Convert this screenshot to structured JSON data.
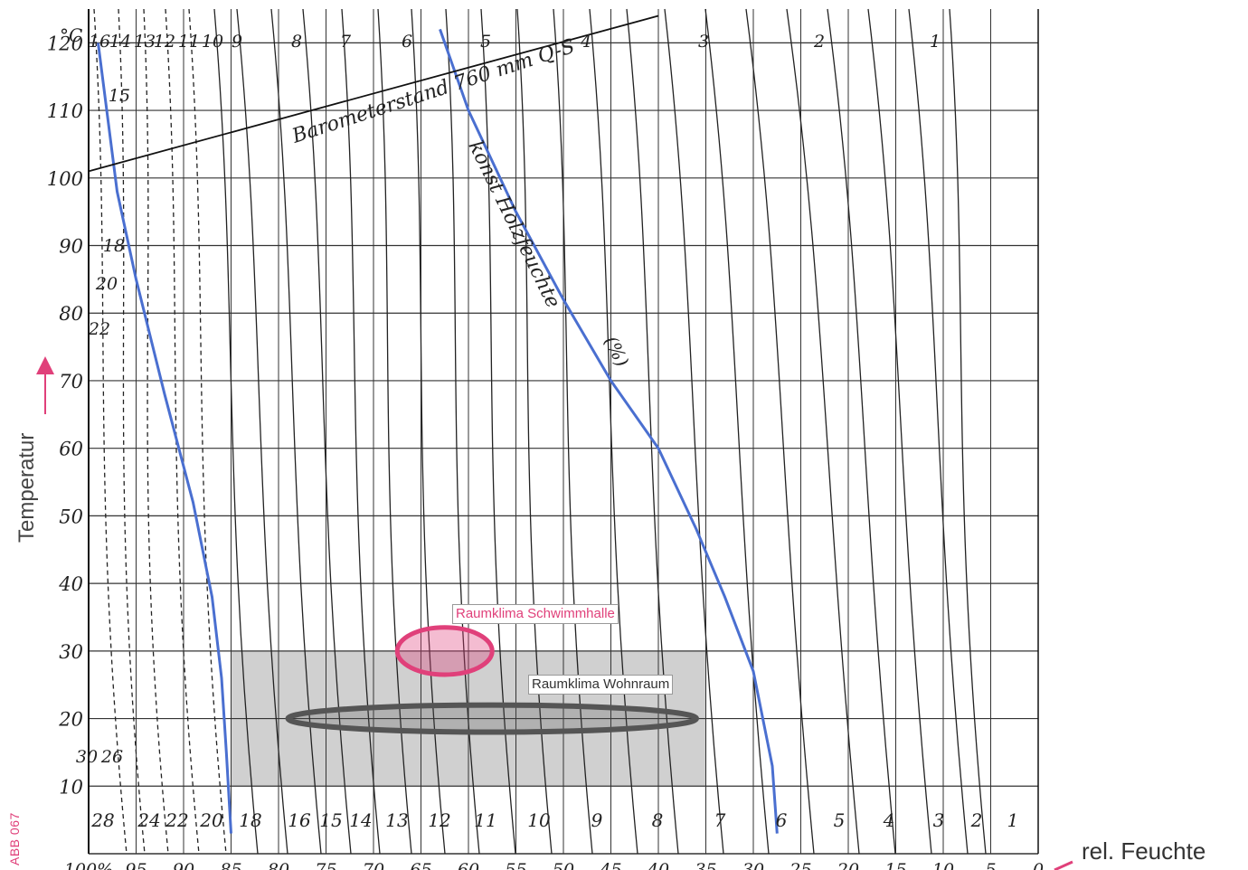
{
  "chart_data": {
    "type": "line",
    "ylabel": "Temperatur",
    "xlabel": "rel. Feuchte",
    "xlim": [
      100,
      0
    ],
    "ylim": [
      0,
      125
    ],
    "grid": true,
    "y_unit": "°C",
    "x_unit": "%",
    "y_ticks": [
      10,
      20,
      30,
      40,
      50,
      60,
      70,
      80,
      90,
      100,
      110,
      120
    ],
    "x_ticks": [
      100,
      95,
      90,
      85,
      80,
      75,
      70,
      65,
      60,
      55,
      50,
      45,
      40,
      35,
      30,
      25,
      20,
      15,
      10,
      5,
      0
    ],
    "x_tick_labels": [
      "100%",
      "95",
      "90",
      "85",
      "80",
      "75",
      "70",
      "65",
      "60",
      "55",
      "50",
      "45",
      "40",
      "35",
      "30",
      "25",
      "20",
      "15",
      "10",
      "5",
      "0"
    ],
    "curve_labels_top": [
      "16",
      "14",
      "13",
      "12",
      "11",
      "10",
      "9",
      "8",
      "7",
      "6",
      "5",
      "4",
      "3",
      "2",
      "1"
    ],
    "curve_labels_left": [
      "15",
      "18",
      "20",
      "22"
    ],
    "curve_labels_lowleft": [
      "30",
      "26"
    ],
    "curve_labels_bottom": [
      "28",
      "24",
      "22",
      "20",
      "18",
      "16",
      "15",
      "14",
      "13",
      "12",
      "11",
      "10",
      "9",
      "8",
      "7",
      "6",
      "5",
      "4",
      "3",
      "2",
      "1"
    ],
    "barometer_label": "Barometerstand 760 mm Q-S",
    "highlight_curve_label": "konst Holzfeuchte",
    "highlight_curve_unit": "(%)",
    "barometer_line": {
      "x": [
        100,
        40
      ],
      "y": [
        101,
        124
      ]
    },
    "highlight_curves": [
      {
        "moisture": "18",
        "x": [
          99,
          97,
          95,
          92,
          89,
          87,
          86,
          85.5,
          85
        ],
        "y": [
          120,
          98,
          85,
          68,
          52,
          38,
          26,
          15,
          3
        ]
      },
      {
        "moisture": "6",
        "x": [
          63,
          60,
          55,
          50,
          45,
          40,
          36,
          33,
          30,
          28,
          27.5
        ],
        "y": [
          122,
          110,
          95,
          82,
          70,
          60,
          48,
          38,
          27,
          13,
          3
        ]
      }
    ],
    "climate_band": {
      "x": [
        85,
        35
      ],
      "y": [
        10,
        30
      ]
    },
    "zones": [
      {
        "label": "Raumklima Schwimmhalle",
        "x_center": 62.5,
        "y_center": 30,
        "x_radius": 5,
        "y_radius": 3.5,
        "color": "#e0407a"
      },
      {
        "label": "Raumklima Wohnraum",
        "x_center": 57.5,
        "y_center": 20,
        "x_radius": 21.5,
        "y_radius": 2,
        "color": "#555555"
      }
    ]
  },
  "labels": {
    "side_ylabel": "Temperatur",
    "side_xlabel": "rel. Feuchte",
    "figure_code": "ABB 067",
    "zone_pool": "Raumklima Schwimmhalle",
    "zone_living": "Raumklima Wohnraum"
  },
  "colors": {
    "accent": "#e0407a",
    "highlight_curve": "#4a6fd0",
    "grid": "#333333",
    "band": "#c8c8c8",
    "living_zone": "#555555"
  }
}
